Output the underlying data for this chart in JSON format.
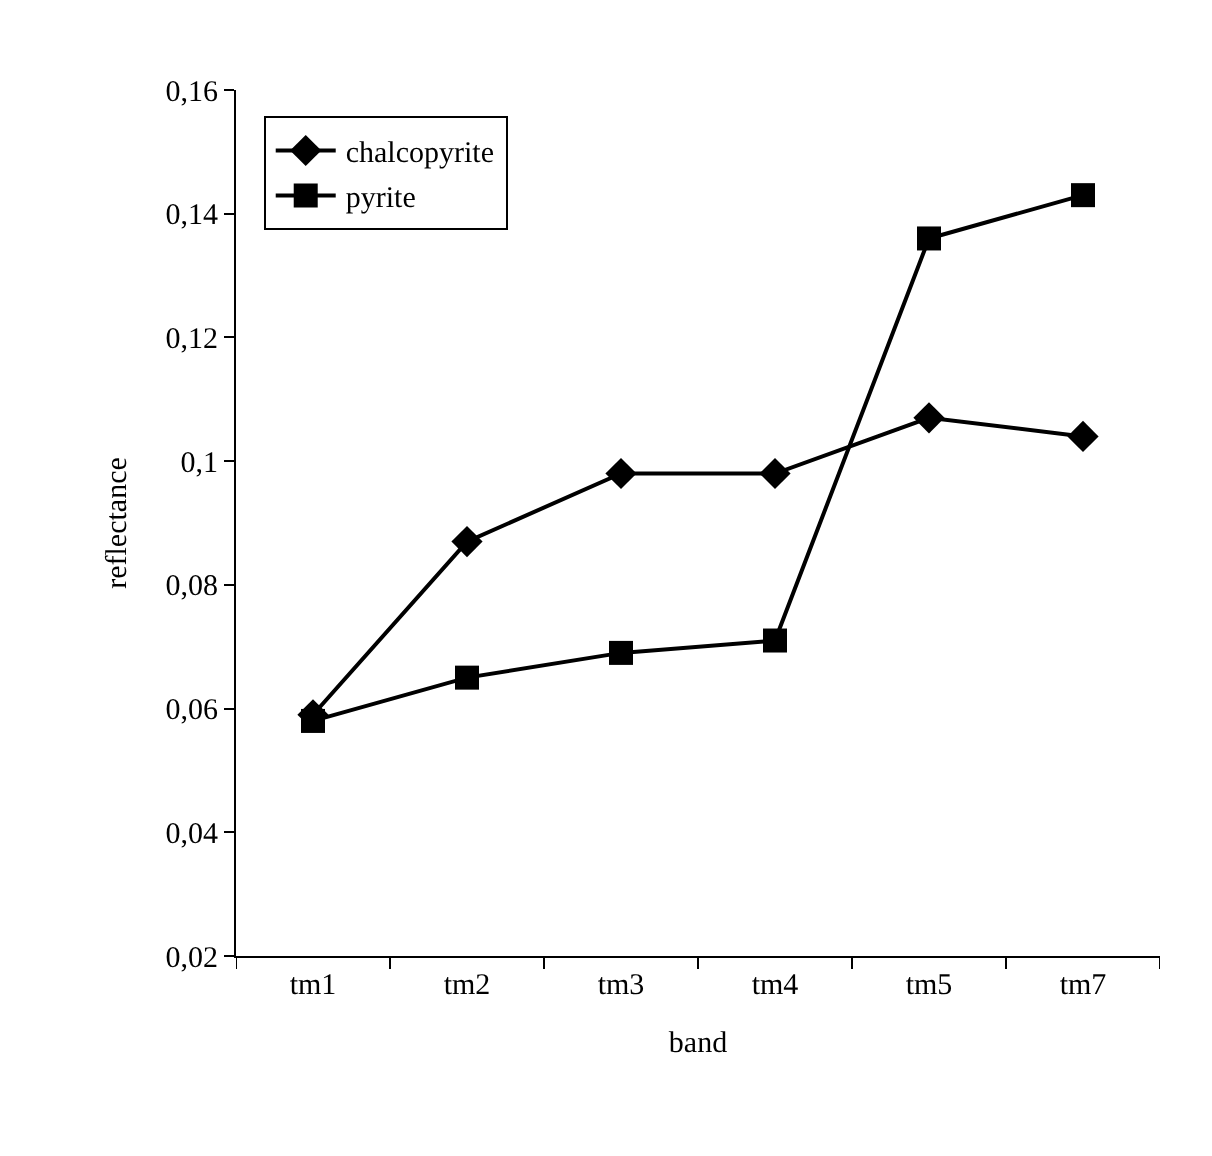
{
  "chart_data": {
    "type": "line",
    "xlabel": "band",
    "ylabel": "reflectance",
    "categories": [
      "tm1",
      "tm2",
      "tm3",
      "tm4",
      "tm5",
      "tm7"
    ],
    "series": [
      {
        "name": "chalcopyrite",
        "color": "#000000",
        "marker": "diamond",
        "values": [
          0.059,
          0.087,
          0.098,
          0.098,
          0.107,
          0.104
        ]
      },
      {
        "name": "pyrite",
        "color": "#000000",
        "marker": "square",
        "values": [
          0.058,
          0.065,
          0.069,
          0.071,
          0.136,
          0.143
        ]
      }
    ],
    "ylim": [
      0.02,
      0.16
    ],
    "yticks": [
      {
        "value": 0.02,
        "label": "0,02"
      },
      {
        "value": 0.04,
        "label": "0,04"
      },
      {
        "value": 0.06,
        "label": "0,06"
      },
      {
        "value": 0.08,
        "label": "0,08"
      },
      {
        "value": 0.1,
        "label": "0,1"
      },
      {
        "value": 0.12,
        "label": "0,12"
      },
      {
        "value": 0.14,
        "label": "0,14"
      },
      {
        "value": 0.16,
        "label": "0,16"
      }
    ],
    "grid": false,
    "legend": "top left",
    "line_style": "solid"
  }
}
